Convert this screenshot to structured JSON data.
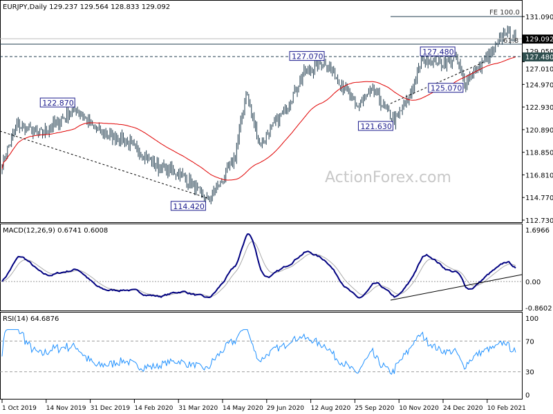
{
  "chart_data": {
    "type": "candlestick",
    "title": "EURJPY,Daily",
    "ohlc_header": "129.237 129.564 128.833 129.092",
    "watermark": "ActionForex.com",
    "price_axis": {
      "ticks": [
        "131.090",
        "129.050",
        "127.010",
        "124.970",
        "122.930",
        "120.890",
        "118.850",
        "116.810",
        "114.770",
        "112.730"
      ],
      "range": [
        112.73,
        131.09
      ]
    },
    "current_price": "129.092",
    "level_marker": "127.480",
    "x_ticks": [
      "1 Oct 2019",
      "14 Nov 2019",
      "31 Dec 2019",
      "14 Feb 2020",
      "31 Mar 2020",
      "14 May 2020",
      "29 Jun 2020",
      "12 Aug 2020",
      "25 Sep 2020",
      "10 Nov 2020",
      "24 Dec 2020",
      "10 Feb 2021"
    ],
    "price_path": [
      [
        0,
        117.8
      ],
      [
        11,
        121.3
      ],
      [
        29,
        120.5
      ],
      [
        55,
        122.8
      ],
      [
        70,
        120.8
      ],
      [
        91,
        120.0
      ],
      [
        116,
        117.5
      ],
      [
        132,
        117.0
      ],
      [
        152,
        114.5
      ],
      [
        163,
        116.2
      ],
      [
        173,
        118.5
      ],
      [
        181,
        124.3
      ],
      [
        191,
        119.5
      ],
      [
        209,
        122.5
      ],
      [
        224,
        126.0
      ],
      [
        240,
        127.0
      ],
      [
        255,
        124.5
      ],
      [
        263,
        122.9
      ],
      [
        275,
        124.5
      ],
      [
        286,
        122.5
      ],
      [
        291,
        121.7
      ],
      [
        301,
        123.5
      ],
      [
        312,
        127.3
      ],
      [
        327,
        126.9
      ],
      [
        337,
        127.3
      ],
      [
        343,
        125.1
      ],
      [
        357,
        127.0
      ],
      [
        368,
        128.6
      ],
      [
        373,
        129.8
      ],
      [
        381,
        129.1
      ]
    ],
    "annotations": [
      {
        "text": "122.870",
        "bar": 55,
        "price": 122.87
      },
      {
        "text": "114.420",
        "bar": 152,
        "price": 114.42
      },
      {
        "text": "127.070",
        "bar": 240,
        "price": 127.07
      },
      {
        "text": "121.630",
        "bar": 291,
        "price": 121.63
      },
      {
        "text": "127.480",
        "bar": 337,
        "price": 127.48
      },
      {
        "text": "125.070",
        "bar": 343,
        "price": 125.07
      },
      {
        "text": "FE 100.0",
        "price": 131.09
      },
      {
        "text": "61.8",
        "price": 128.6
      }
    ],
    "moving_average": {
      "type": "SMA",
      "period": 55,
      "color": "#e00000"
    },
    "macd": {
      "label": "MACD(12,26,9) 0.6741 0.6008",
      "ticks": [
        "1.6966",
        "0.00",
        "-0.8602"
      ],
      "range": [
        -0.8602,
        1.6966
      ]
    },
    "rsi": {
      "label": "RSI(14) 64.6876",
      "ticks": [
        "100",
        "70",
        "30",
        "0"
      ],
      "range": [
        0,
        100
      ]
    }
  }
}
